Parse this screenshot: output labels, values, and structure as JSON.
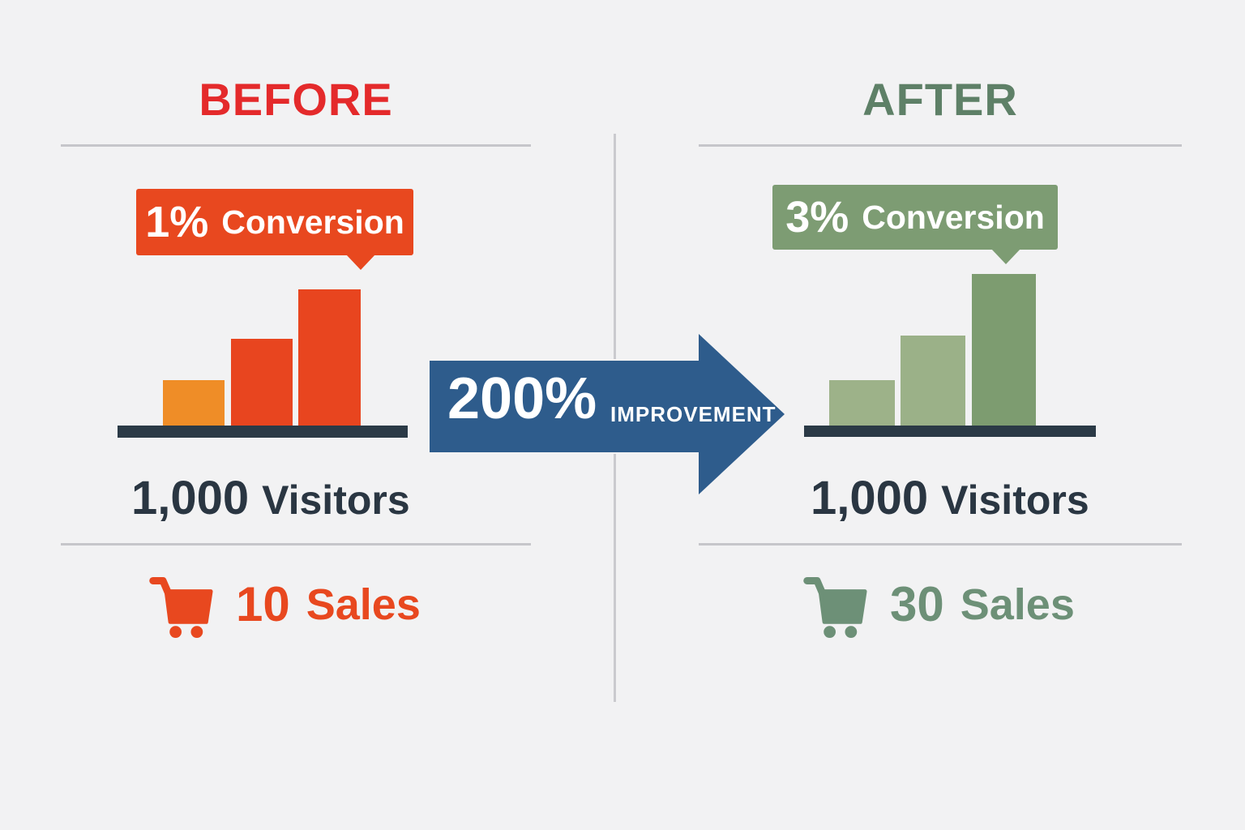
{
  "page": {
    "background": "#F2F2F3",
    "divider_color": "#CACACE",
    "rule_color": "#C6C6CA",
    "baseline_color": "#2B3A46",
    "text_dark": "#2A3642"
  },
  "before": {
    "title": "BEFORE",
    "title_color": "#E42A2B",
    "callout": {
      "value": "1%",
      "label": "Conversion",
      "bg": "#E8481F",
      "text_color": "#FFFFFF"
    },
    "visitors": {
      "value": "1,000",
      "label": "Visitors"
    },
    "sales": {
      "value": "10",
      "label": "Sales",
      "color": "#E8481F",
      "icon": "shopping-cart-icon"
    }
  },
  "after": {
    "title": "AFTER",
    "title_color": "#5E8067",
    "callout": {
      "value": "3%",
      "label": "Conversion",
      "bg": "#7D9C73",
      "text_color": "#FFFFFF"
    },
    "visitors": {
      "value": "1,000",
      "label": "Visitors"
    },
    "sales": {
      "value": "30",
      "label": "Sales",
      "color": "#6D9077",
      "icon": "shopping-cart-icon"
    }
  },
  "arrow": {
    "value": "200%",
    "label": "IMPROVEMENT",
    "bg": "#2E5C8C",
    "text_color": "#FFFFFF",
    "icon": "right-arrow-shape"
  },
  "chart_data": [
    {
      "type": "bar",
      "title": "BEFORE",
      "categories": [
        "bar-1",
        "bar-2",
        "bar-3"
      ],
      "values": [
        56,
        107,
        168
      ],
      "values_unit": "px-height (decorative ascending bars, no axis scale shown)",
      "bar_colors": [
        "#EF8D27",
        "#E8451F",
        "#E8451F"
      ],
      "conversion_rate": "1%",
      "visitors": "1,000",
      "sales": 10,
      "legend": "none",
      "axes": "dark baseline only, no ticks"
    },
    {
      "type": "bar",
      "title": "AFTER",
      "categories": [
        "bar-1",
        "bar-2",
        "bar-3"
      ],
      "values": [
        56,
        111,
        187
      ],
      "values_unit": "px-height (decorative ascending bars, no axis scale shown)",
      "bar_colors": [
        "#9DB289",
        "#9BB188",
        "#7D9C70"
      ],
      "conversion_rate": "3%",
      "visitors": "1,000",
      "sales": 30,
      "legend": "none",
      "axes": "dark baseline only, no ticks"
    }
  ],
  "improvement": "200% IMPROVEMENT"
}
